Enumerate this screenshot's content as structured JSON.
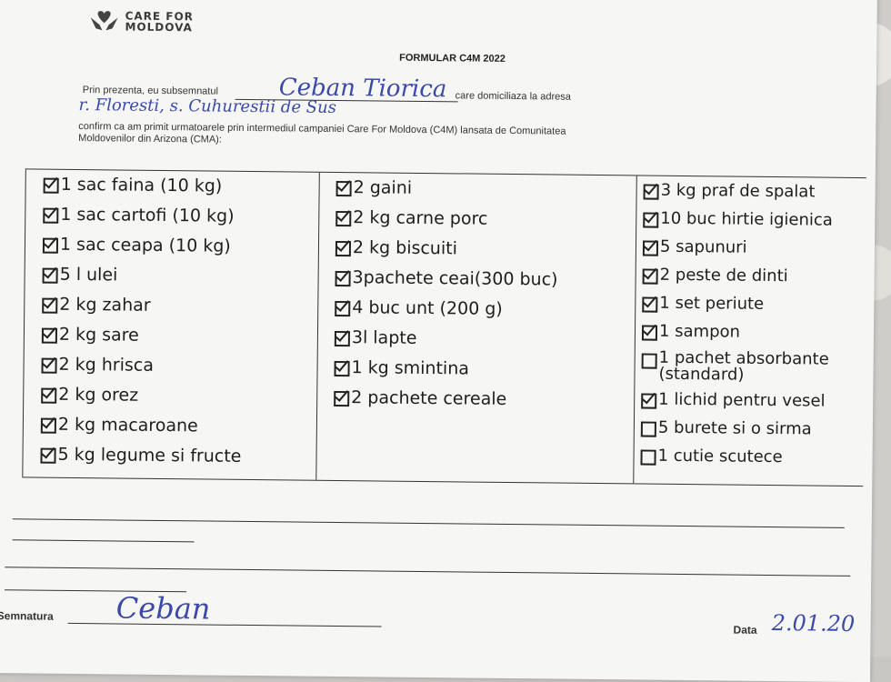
{
  "header": {
    "logo_line1": "CARE FOR",
    "logo_line2": "MOLDOVA",
    "title": "FORMULAR C4M 2022"
  },
  "intro": {
    "prefix": "Prin prezenta, eu subsemnatul",
    "name_handwritten": "Ceban Tiorica",
    "suffix": "care domiciliaza la adresa",
    "address_handwritten": "r. Floresti, s. Cuhurestii de Sus",
    "confirm_text": "confirm ca am primit urmatoarele prin intermediul campaniei Care For Moldova (C4M) lansata de Comunitatea",
    "confirm_text2": "Moldovenilor din Arizona (CMA):"
  },
  "columns": [
    {
      "items": [
        {
          "label": "1 sac faina (10 kg)",
          "checked": true
        },
        {
          "label": "1 sac cartofi (10 kg)",
          "checked": true
        },
        {
          "label": "1 sac ceapa (10 kg)",
          "checked": true
        },
        {
          "label": "5 l ulei",
          "checked": true
        },
        {
          "label": "2 kg zahar",
          "checked": true
        },
        {
          "label": "2 kg sare",
          "checked": true
        },
        {
          "label": "2 kg hrisca",
          "checked": true
        },
        {
          "label": "2 kg orez",
          "checked": true
        },
        {
          "label": "2 kg macaroane",
          "checked": true
        },
        {
          "label": "5 kg legume si fructe",
          "checked": true
        }
      ]
    },
    {
      "items": [
        {
          "label": "2 gaini",
          "checked": true
        },
        {
          "label": "2 kg carne porc",
          "checked": true
        },
        {
          "label": "2 kg biscuiti",
          "checked": true
        },
        {
          "label": "3pachete ceai(300 buc)",
          "checked": true
        },
        {
          "label": "4 buc unt (200 g)",
          "checked": true
        },
        {
          "label": "3l lapte",
          "checked": true
        },
        {
          "label": "1 kg smintina",
          "checked": true
        },
        {
          "label": "2 pachete cereale",
          "checked": true
        }
      ]
    },
    {
      "items": [
        {
          "label": "3 kg praf de spalat",
          "checked": true
        },
        {
          "label": "10 buc hirtie igienica",
          "checked": true
        },
        {
          "label": "5 sapunuri",
          "checked": true
        },
        {
          "label": "2 peste de dinti",
          "checked": true
        },
        {
          "label": "1 set periute",
          "checked": true
        },
        {
          "label": "1 sampon",
          "checked": true
        },
        {
          "label": "1 pachet absorbante (standard)",
          "checked": false
        },
        {
          "label": "1 lichid pentru vesel",
          "checked": true
        },
        {
          "label": "5 burete si o sirma",
          "checked": false
        },
        {
          "label": "1 cutie scutece",
          "checked": false
        }
      ]
    }
  ],
  "footer": {
    "signature_label": "Semnatura",
    "signature_handwritten": "Ceban",
    "date_label": "Data",
    "date_handwritten": "2.01.20"
  },
  "colors": {
    "ink": "#3b4aa8",
    "paper": "#f6f6f4"
  }
}
